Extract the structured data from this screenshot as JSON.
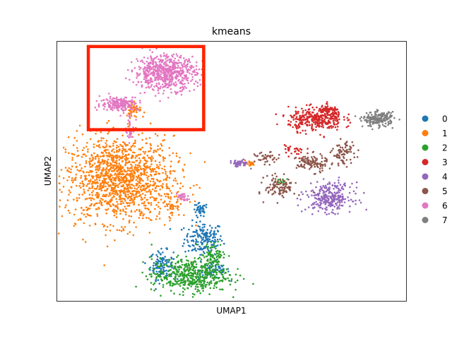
{
  "chart_data": {
    "type": "scatter",
    "title": "kmeans",
    "xlabel": "UMAP1",
    "ylabel": "UMAP2",
    "xlim": [
      0,
      100
    ],
    "ylim": [
      0,
      100
    ],
    "grid": false,
    "ticks": false,
    "legend_placement": "right",
    "series": [
      {
        "name": "0",
        "color": "#1f77b4",
        "clusters": [
          {
            "cx": 42,
            "cy": 24,
            "rx": 5,
            "ry": 6,
            "n": 180
          },
          {
            "cx": 30,
            "cy": 14,
            "rx": 3,
            "ry": 5,
            "n": 120
          },
          {
            "cx": 45,
            "cy": 12,
            "rx": 4,
            "ry": 3,
            "n": 70
          },
          {
            "cx": 41,
            "cy": 35,
            "rx": 2,
            "ry": 2.5,
            "n": 40
          }
        ]
      },
      {
        "name": "1",
        "color": "#ff7f0e",
        "clusters": [
          {
            "cx": 18,
            "cy": 47,
            "rx": 14,
            "ry": 15,
            "n": 1400
          },
          {
            "cx": 22,
            "cy": 74,
            "rx": 2,
            "ry": 3,
            "n": 50
          },
          {
            "cx": 33,
            "cy": 37,
            "rx": 2,
            "ry": 4,
            "n": 40
          },
          {
            "cx": 55,
            "cy": 53,
            "rx": 1.5,
            "ry": 1,
            "n": 20
          }
        ]
      },
      {
        "name": "2",
        "color": "#2ca02c",
        "clusters": [
          {
            "cx": 38,
            "cy": 10,
            "rx": 10,
            "ry": 6,
            "n": 500
          },
          {
            "cx": 45,
            "cy": 18,
            "rx": 3,
            "ry": 4,
            "n": 80
          },
          {
            "cx": 65,
            "cy": 46,
            "rx": 1.5,
            "ry": 1,
            "n": 10
          },
          {
            "cx": 31,
            "cy": 85,
            "rx": 0.8,
            "ry": 1,
            "n": 4
          }
        ]
      },
      {
        "name": "3",
        "color": "#d62728",
        "clusters": [
          {
            "cx": 74,
            "cy": 70,
            "rx": 7,
            "ry": 4,
            "n": 320
          },
          {
            "cx": 78,
            "cy": 73,
            "rx": 3,
            "ry": 2,
            "n": 80
          },
          {
            "cx": 68,
            "cy": 58,
            "rx": 3,
            "ry": 3,
            "n": 30
          }
        ]
      },
      {
        "name": "4",
        "color": "#9467bd",
        "clusters": [
          {
            "cx": 78,
            "cy": 40,
            "rx": 6,
            "ry": 5,
            "n": 280
          },
          {
            "cx": 52,
            "cy": 53,
            "rx": 2.5,
            "ry": 1.2,
            "n": 50
          }
        ]
      },
      {
        "name": "5",
        "color": "#8c564b",
        "clusters": [
          {
            "cx": 64,
            "cy": 44,
            "rx": 4,
            "ry": 4,
            "n": 110
          },
          {
            "cx": 73,
            "cy": 53,
            "rx": 4,
            "ry": 3,
            "n": 110
          },
          {
            "cx": 82,
            "cy": 57,
            "rx": 3,
            "ry": 4,
            "n": 80
          },
          {
            "cx": 60,
            "cy": 55,
            "rx": 3,
            "ry": 2,
            "n": 40
          }
        ]
      },
      {
        "name": "6",
        "color": "#e377c2",
        "clusters": [
          {
            "cx": 31,
            "cy": 88,
            "rx": 8,
            "ry": 6,
            "n": 650
          },
          {
            "cx": 18,
            "cy": 76,
            "rx": 5,
            "ry": 2.5,
            "n": 200
          },
          {
            "cx": 21,
            "cy": 66,
            "rx": 1.2,
            "ry": 4,
            "n": 40
          },
          {
            "cx": 36,
            "cy": 40,
            "rx": 1.5,
            "ry": 1.5,
            "n": 30
          }
        ]
      },
      {
        "name": "7",
        "color": "#7f7f7f",
        "clusters": [
          {
            "cx": 92,
            "cy": 70,
            "rx": 4,
            "ry": 2.5,
            "n": 200
          }
        ]
      }
    ],
    "highlight_box": {
      "x": [
        9,
        42
      ],
      "y": [
        66,
        98
      ],
      "color": "#ff2200"
    }
  }
}
